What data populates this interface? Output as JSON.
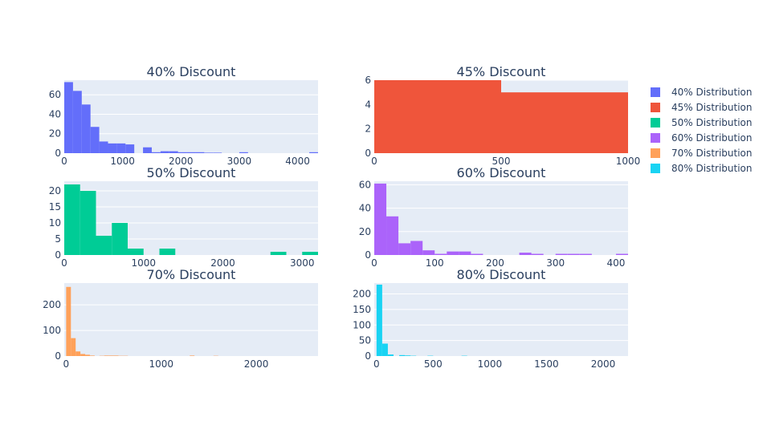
{
  "chart_data": [
    {
      "type": "bar",
      "title": "40% Discount",
      "series_name": "40% Distribution",
      "color": "#636efa",
      "bin_size": 150,
      "xlim": [
        0,
        4350
      ],
      "ylim": [
        0,
        75
      ],
      "xticks": [
        0,
        1000,
        2000,
        3000,
        4000
      ],
      "yticks": [
        0,
        20,
        40,
        60
      ],
      "bins": [
        {
          "x0": 0,
          "x1": 150,
          "count": 73
        },
        {
          "x0": 150,
          "x1": 300,
          "count": 64
        },
        {
          "x0": 300,
          "x1": 450,
          "count": 50
        },
        {
          "x0": 450,
          "x1": 600,
          "count": 27
        },
        {
          "x0": 600,
          "x1": 750,
          "count": 12
        },
        {
          "x0": 750,
          "x1": 900,
          "count": 10
        },
        {
          "x0": 900,
          "x1": 1050,
          "count": 10
        },
        {
          "x0": 1050,
          "x1": 1200,
          "count": 9
        },
        {
          "x0": 1200,
          "x1": 1350,
          "count": 0
        },
        {
          "x0": 1350,
          "x1": 1500,
          "count": 6
        },
        {
          "x0": 1500,
          "x1": 1650,
          "count": 1
        },
        {
          "x0": 1650,
          "x1": 1800,
          "count": 2
        },
        {
          "x0": 1800,
          "x1": 1950,
          "count": 2
        },
        {
          "x0": 1950,
          "x1": 2100,
          "count": 1
        },
        {
          "x0": 2100,
          "x1": 2250,
          "count": 1
        },
        {
          "x0": 2250,
          "x1": 2400,
          "count": 1
        },
        {
          "x0": 2400,
          "x1": 2550,
          "count": 0.5
        },
        {
          "x0": 2550,
          "x1": 2700,
          "count": 0.5
        },
        {
          "x0": 2700,
          "x1": 2850,
          "count": 0
        },
        {
          "x0": 2850,
          "x1": 3000,
          "count": 0
        },
        {
          "x0": 3000,
          "x1": 3150,
          "count": 1
        },
        {
          "x0": 4200,
          "x1": 4350,
          "count": 1
        }
      ]
    },
    {
      "type": "bar",
      "title": "45% Discount",
      "series_name": "45% Distribution",
      "color": "#ef553b",
      "bin_size": 500,
      "xlim": [
        0,
        1000
      ],
      "ylim": [
        0,
        6
      ],
      "xticks": [
        0,
        500,
        1000
      ],
      "yticks": [
        0,
        2,
        4,
        6
      ],
      "bins": [
        {
          "x0": 0,
          "x1": 500,
          "count": 6
        },
        {
          "x0": 500,
          "x1": 1000,
          "count": 5
        }
      ]
    },
    {
      "type": "bar",
      "title": "50% Discount",
      "series_name": "50% Distribution",
      "color": "#00cc96",
      "bin_size": 200,
      "xlim": [
        0,
        3200
      ],
      "ylim": [
        0,
        23
      ],
      "xticks": [
        0,
        1000,
        2000,
        3000
      ],
      "yticks": [
        0,
        5,
        10,
        15,
        20
      ],
      "bins": [
        {
          "x0": 0,
          "x1": 200,
          "count": 22
        },
        {
          "x0": 200,
          "x1": 400,
          "count": 20
        },
        {
          "x0": 400,
          "x1": 600,
          "count": 6
        },
        {
          "x0": 600,
          "x1": 800,
          "count": 10
        },
        {
          "x0": 800,
          "x1": 1000,
          "count": 2
        },
        {
          "x0": 1000,
          "x1": 1200,
          "count": 0
        },
        {
          "x0": 1200,
          "x1": 1400,
          "count": 2
        },
        {
          "x0": 2600,
          "x1": 2800,
          "count": 1
        },
        {
          "x0": 3000,
          "x1": 3200,
          "count": 1
        }
      ]
    },
    {
      "type": "bar",
      "title": "60% Discount",
      "series_name": "60% Distribution",
      "color": "#ab63fa",
      "bin_size": 20,
      "xlim": [
        0,
        420
      ],
      "ylim": [
        0,
        63
      ],
      "xticks": [
        0,
        100,
        200,
        300,
        400
      ],
      "yticks": [
        0,
        20,
        40,
        60
      ],
      "bins": [
        {
          "x0": 0,
          "x1": 20,
          "count": 61
        },
        {
          "x0": 20,
          "x1": 40,
          "count": 33
        },
        {
          "x0": 40,
          "x1": 60,
          "count": 10
        },
        {
          "x0": 60,
          "x1": 80,
          "count": 12
        },
        {
          "x0": 80,
          "x1": 100,
          "count": 4
        },
        {
          "x0": 100,
          "x1": 120,
          "count": 1
        },
        {
          "x0": 120,
          "x1": 140,
          "count": 3
        },
        {
          "x0": 140,
          "x1": 160,
          "count": 3
        },
        {
          "x0": 160,
          "x1": 180,
          "count": 1
        },
        {
          "x0": 240,
          "x1": 260,
          "count": 2
        },
        {
          "x0": 260,
          "x1": 280,
          "count": 1
        },
        {
          "x0": 300,
          "x1": 320,
          "count": 1
        },
        {
          "x0": 320,
          "x1": 340,
          "count": 1
        },
        {
          "x0": 340,
          "x1": 360,
          "count": 1
        },
        {
          "x0": 400,
          "x1": 420,
          "count": 1
        }
      ]
    },
    {
      "type": "bar",
      "title": "70% Discount",
      "series_name": "70% Distribution",
      "color": "#ffa15a",
      "bin_size": 50,
      "xlim": [
        -20,
        2650
      ],
      "ylim": [
        0,
        285
      ],
      "xticks": [
        0,
        1000,
        2000
      ],
      "yticks": [
        0,
        100,
        200
      ],
      "bins": [
        {
          "x0": 0,
          "x1": 50,
          "count": 270
        },
        {
          "x0": 50,
          "x1": 100,
          "count": 70
        },
        {
          "x0": 100,
          "x1": 150,
          "count": 18
        },
        {
          "x0": 150,
          "x1": 200,
          "count": 8
        },
        {
          "x0": 200,
          "x1": 250,
          "count": 5
        },
        {
          "x0": 250,
          "x1": 300,
          "count": 2
        },
        {
          "x0": 350,
          "x1": 400,
          "count": 1
        },
        {
          "x0": 400,
          "x1": 450,
          "count": 2
        },
        {
          "x0": 450,
          "x1": 500,
          "count": 2
        },
        {
          "x0": 500,
          "x1": 550,
          "count": 2
        },
        {
          "x0": 550,
          "x1": 600,
          "count": 1
        },
        {
          "x0": 600,
          "x1": 650,
          "count": 1
        },
        {
          "x0": 1300,
          "x1": 1350,
          "count": 2
        },
        {
          "x0": 1550,
          "x1": 1600,
          "count": 1
        }
      ]
    },
    {
      "type": "bar",
      "title": "80% Discount",
      "series_name": "80% Distribution",
      "color": "#19d3f3",
      "bin_size": 50,
      "xlim": [
        -20,
        2220
      ],
      "ylim": [
        0,
        235
      ],
      "xticks": [
        0,
        500,
        1000,
        1500,
        2000
      ],
      "yticks": [
        0,
        50,
        100,
        150,
        200
      ],
      "bins": [
        {
          "x0": 0,
          "x1": 50,
          "count": 230
        },
        {
          "x0": 50,
          "x1": 100,
          "count": 40
        },
        {
          "x0": 100,
          "x1": 150,
          "count": 5
        },
        {
          "x0": 200,
          "x1": 250,
          "count": 3
        },
        {
          "x0": 250,
          "x1": 300,
          "count": 2
        },
        {
          "x0": 300,
          "x1": 350,
          "count": 1
        },
        {
          "x0": 450,
          "x1": 500,
          "count": 1
        },
        {
          "x0": 750,
          "x1": 800,
          "count": 1
        }
      ]
    }
  ],
  "legend": {
    "position": "right",
    "items": [
      {
        "label": "40% Distribution",
        "color": "#636efa"
      },
      {
        "label": "45% Distribution",
        "color": "#ef553b"
      },
      {
        "label": "50% Distribution",
        "color": "#00cc96"
      },
      {
        "label": "60% Distribution",
        "color": "#ab63fa"
      },
      {
        "label": "70% Distribution",
        "color": "#ffa15a"
      },
      {
        "label": "80% Distribution",
        "color": "#19d3f3"
      }
    ]
  }
}
